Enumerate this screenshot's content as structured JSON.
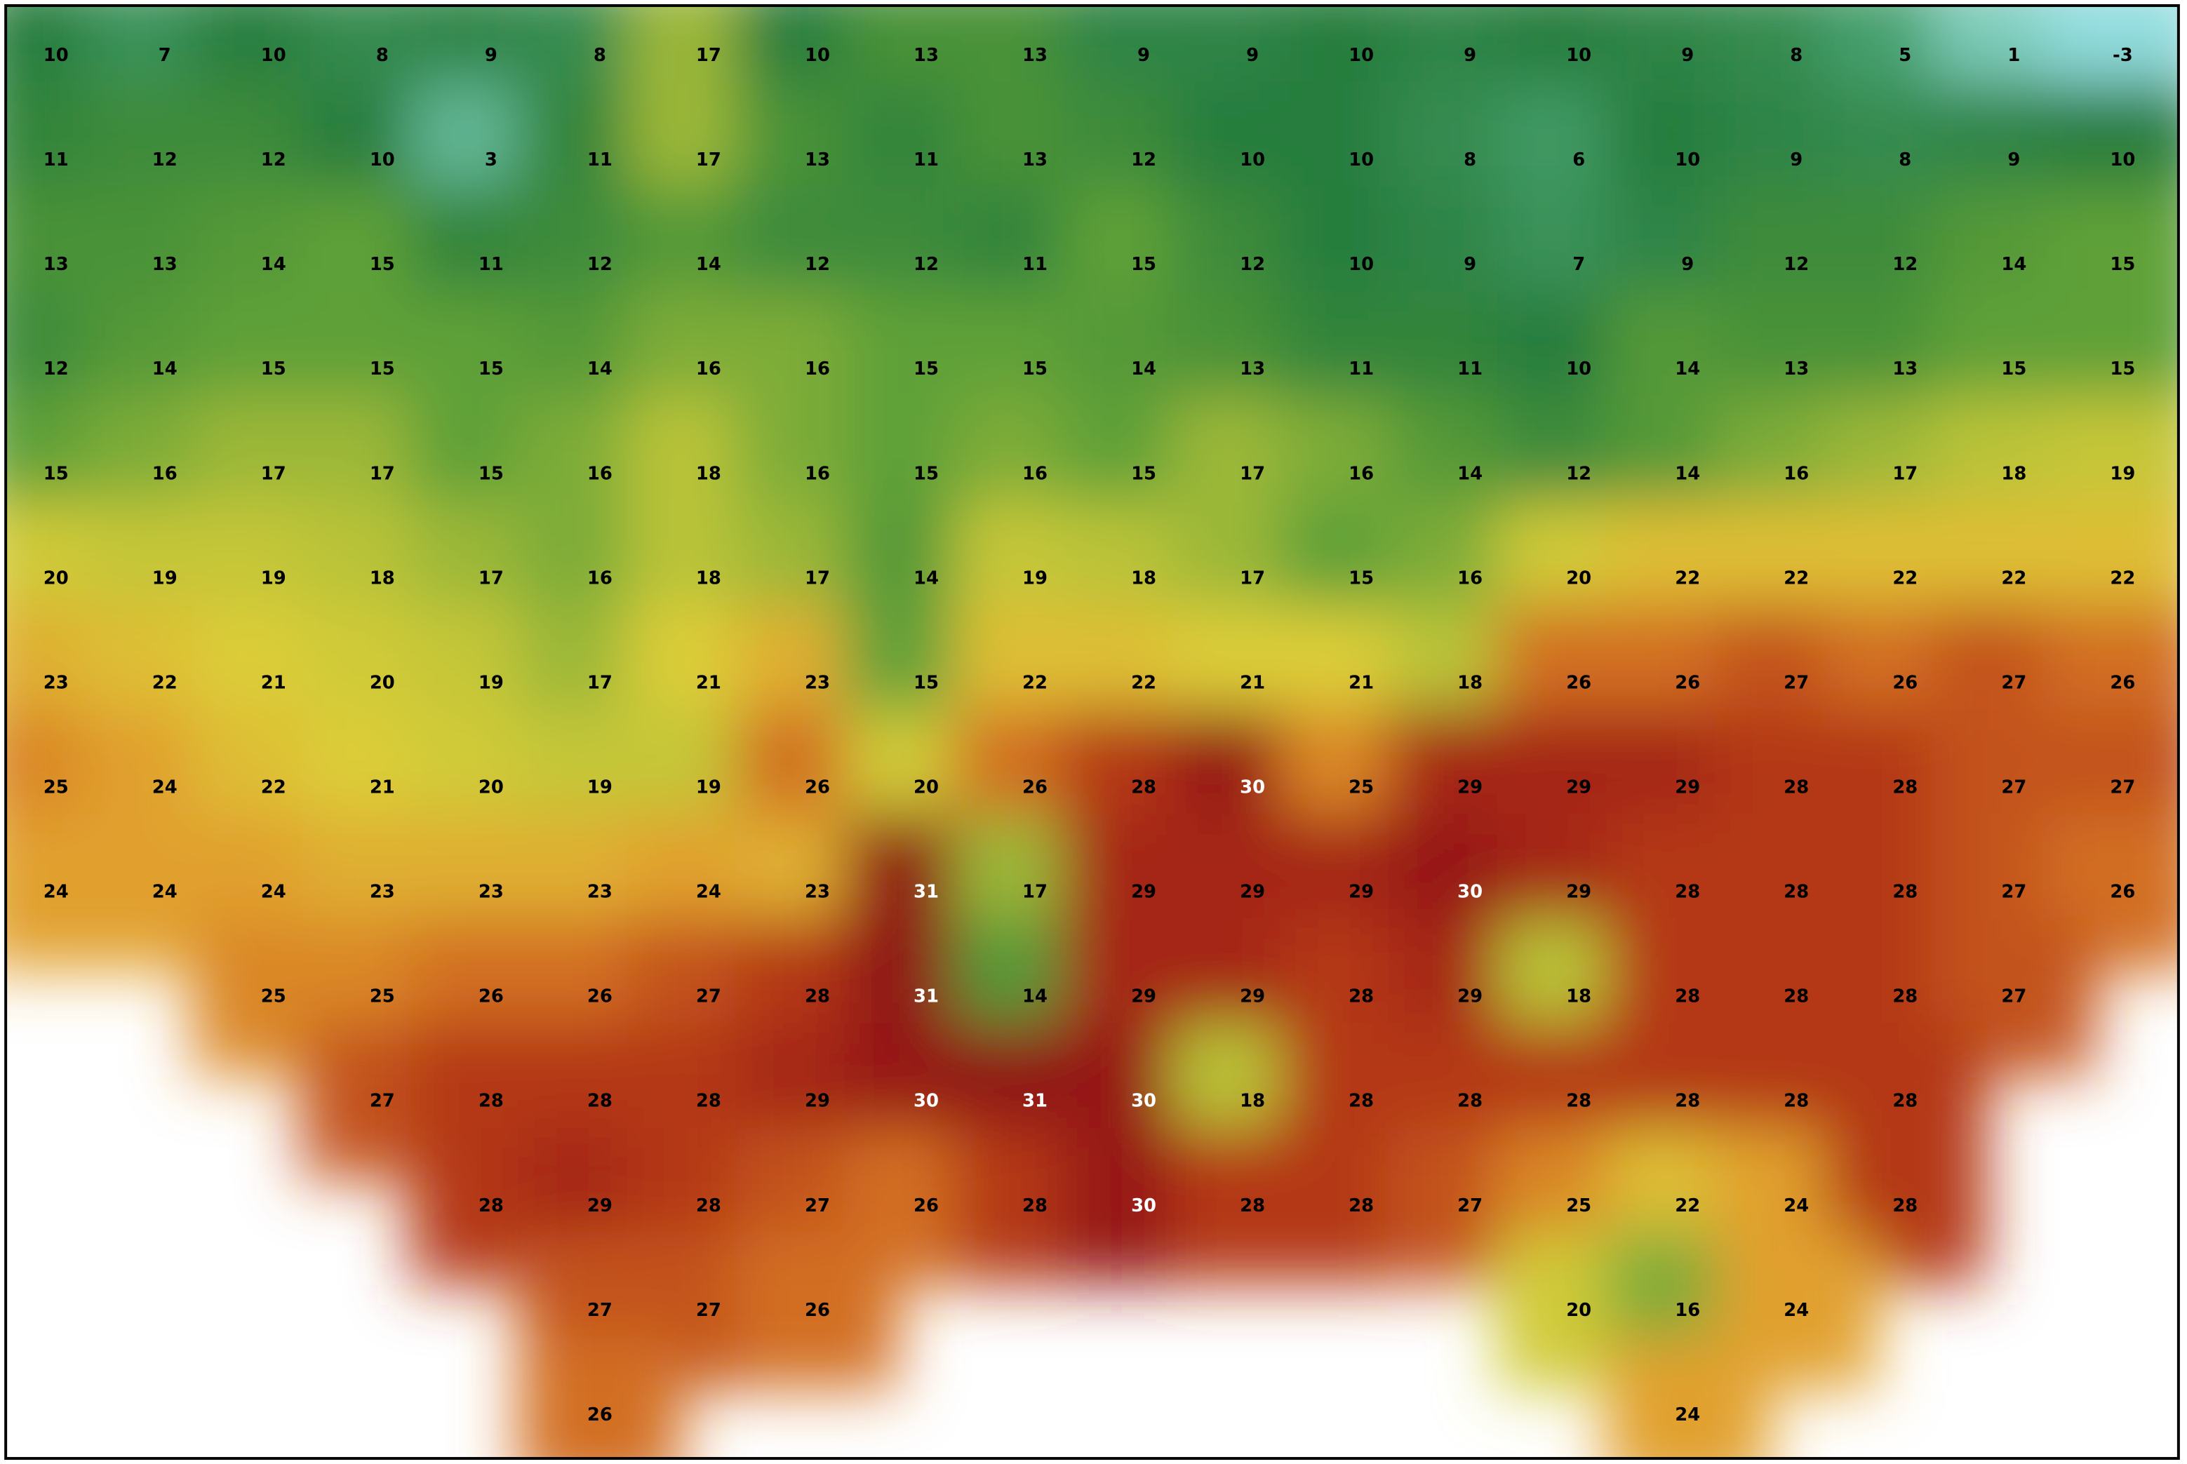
{
  "map": {
    "grid": [
      [
        10,
        7,
        10,
        8,
        9,
        8,
        17,
        10,
        13,
        13,
        9,
        9,
        10,
        9,
        10,
        9,
        8,
        5,
        1,
        -3
      ],
      [
        11,
        12,
        12,
        10,
        3,
        11,
        17,
        13,
        11,
        13,
        12,
        10,
        10,
        8,
        6,
        10,
        9,
        8,
        9,
        10
      ],
      [
        13,
        13,
        14,
        15,
        11,
        12,
        14,
        12,
        12,
        11,
        15,
        12,
        10,
        9,
        7,
        9,
        12,
        12,
        14,
        15
      ],
      [
        12,
        14,
        15,
        15,
        15,
        14,
        16,
        16,
        15,
        15,
        14,
        13,
        11,
        11,
        10,
        14,
        13,
        13,
        15,
        15
      ],
      [
        15,
        16,
        17,
        17,
        15,
        16,
        18,
        16,
        15,
        16,
        15,
        17,
        16,
        14,
        12,
        14,
        16,
        17,
        18,
        19
      ],
      [
        20,
        19,
        19,
        18,
        17,
        16,
        18,
        17,
        14,
        19,
        18,
        17,
        15,
        16,
        20,
        22,
        22,
        22,
        22,
        22
      ],
      [
        23,
        22,
        21,
        20,
        19,
        17,
        21,
        23,
        15,
        22,
        22,
        21,
        21,
        18,
        26,
        26,
        27,
        26,
        27,
        26
      ],
      [
        25,
        24,
        22,
        21,
        20,
        19,
        19,
        26,
        20,
        26,
        28,
        30,
        25,
        29,
        29,
        29,
        28,
        28,
        27,
        27
      ],
      [
        24,
        24,
        24,
        23,
        23,
        23,
        24,
        23,
        31,
        17,
        29,
        29,
        29,
        30,
        29,
        28,
        28,
        28,
        27,
        26
      ],
      [
        null,
        null,
        25,
        25,
        26,
        26,
        27,
        28,
        31,
        14,
        29,
        29,
        28,
        29,
        18,
        28,
        28,
        28,
        27,
        null
      ],
      [
        null,
        null,
        null,
        27,
        28,
        28,
        28,
        29,
        30,
        31,
        30,
        18,
        28,
        28,
        28,
        28,
        28,
        28,
        null,
        null
      ],
      [
        null,
        null,
        null,
        null,
        28,
        29,
        28,
        27,
        26,
        28,
        30,
        28,
        28,
        27,
        25,
        22,
        24,
        28,
        null,
        null
      ],
      [
        null,
        null,
        null,
        null,
        null,
        27,
        27,
        26,
        null,
        null,
        null,
        null,
        null,
        null,
        20,
        16,
        24,
        null,
        null,
        null
      ],
      [
        null,
        null,
        null,
        null,
        null,
        26,
        null,
        null,
        null,
        null,
        null,
        null,
        null,
        null,
        null,
        24,
        null,
        null,
        null,
        null
      ]
    ]
  }
}
